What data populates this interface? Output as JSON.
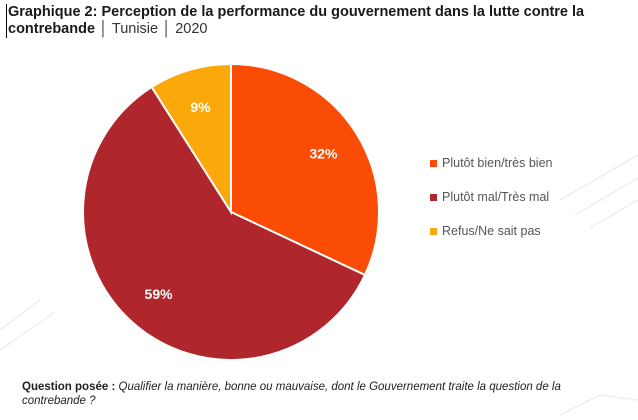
{
  "title": {
    "main": "Graphique 2: Perception de la performance du gouvernement dans la lutte contre la contrebande",
    "country": "Tunisie",
    "year": "2020",
    "separator": "│"
  },
  "chart_data": {
    "type": "pie",
    "categories": [
      "Plutôt bien/très bien",
      "Plutôt mal/Très mal",
      "Refus/Ne sait pas"
    ],
    "values": [
      32,
      59,
      9
    ],
    "data_labels": [
      "32%",
      "59%",
      "9%"
    ],
    "colors": [
      "#fb4c05",
      "#b0262d",
      "#fba80a"
    ],
    "legend_position": "right"
  },
  "question": {
    "label": "Question posée :",
    "text": "Qualifier la manière, bonne ou mauvaise, dont le Gouvernement traite la question de la contrebande ?"
  }
}
